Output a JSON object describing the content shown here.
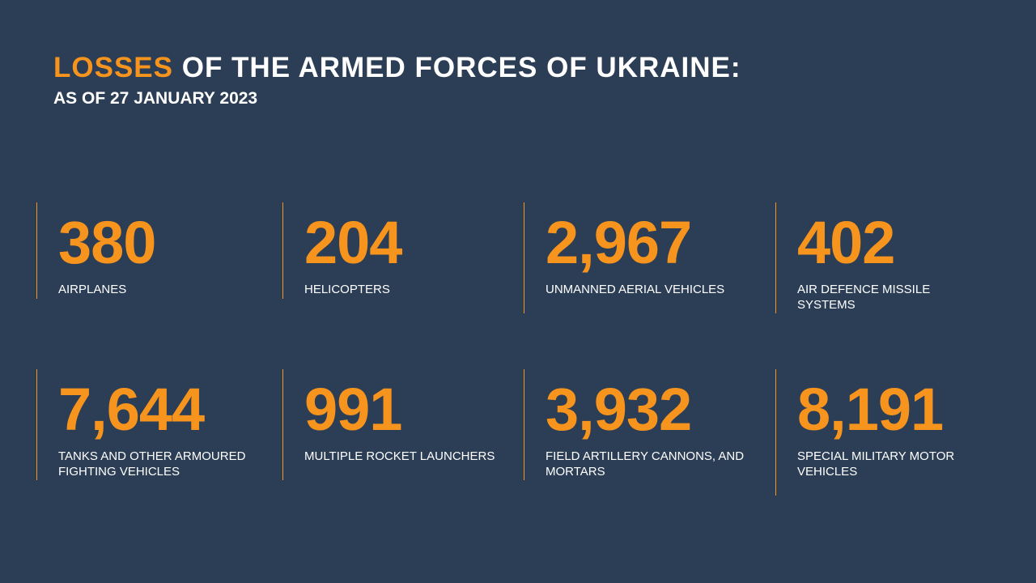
{
  "header": {
    "title_highlight": "LOSSES",
    "title_rest": "OF THE ARMED FORCES OF UKRAINE:",
    "subtitle": "AS OF 27 JANUARY 2023"
  },
  "items": [
    {
      "value": "380",
      "label": "AIRPLANES"
    },
    {
      "value": "204",
      "label": "HELICOPTERS"
    },
    {
      "value": "2,967",
      "label": "UNMANNED AERIAL VEHICLES"
    },
    {
      "value": "402",
      "label": "AIR DEFENCE MISSILE SYSTEMS"
    },
    {
      "value": "7,644",
      "label": "TANKS AND OTHER ARMOURED FIGHTING VEHICLES"
    },
    {
      "value": "991",
      "label": "MULTIPLE ROCKET LAUNCHERS"
    },
    {
      "value": "3,932",
      "label": "FIELD ARTILLERY CANNONS, AND MORTARS"
    },
    {
      "value": "8,191",
      "label": "SPECIAL MILITARY MOTOR VEHICLES"
    }
  ]
}
